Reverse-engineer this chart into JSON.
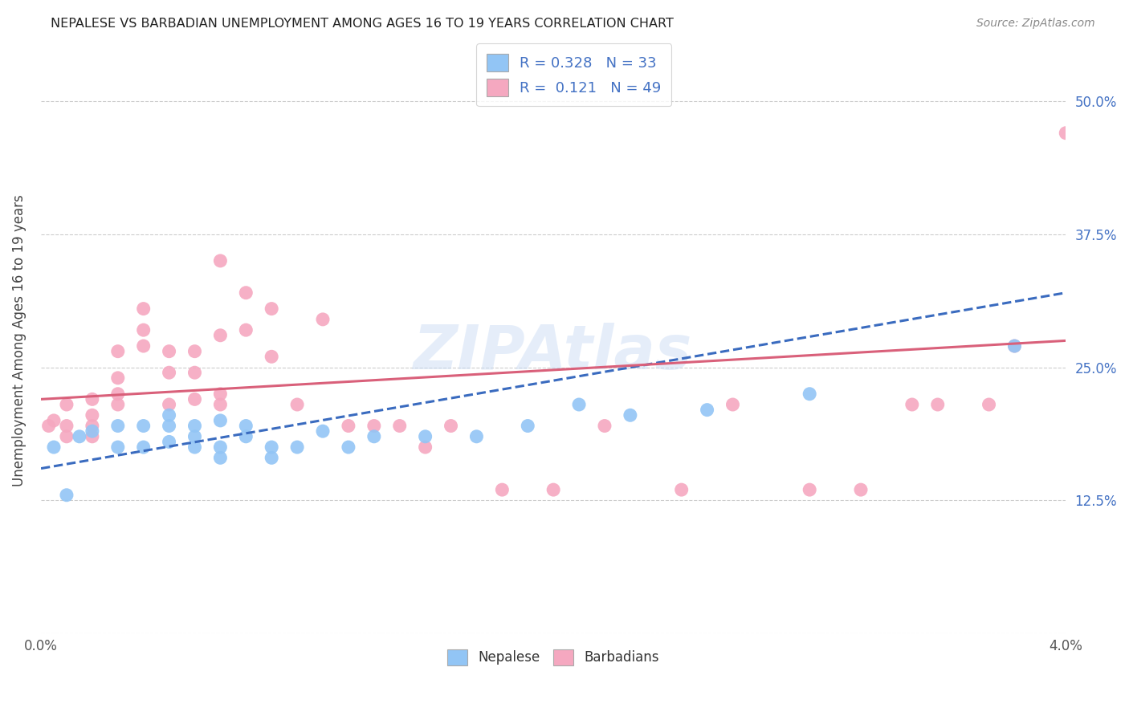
{
  "title": "NEPALESE VS BARBADIAN UNEMPLOYMENT AMONG AGES 16 TO 19 YEARS CORRELATION CHART",
  "source": "Source: ZipAtlas.com",
  "ylabel": "Unemployment Among Ages 16 to 19 years",
  "nepalese_R": 0.328,
  "nepalese_N": 33,
  "barbadian_R": 0.121,
  "barbadian_N": 49,
  "nepalese_color": "#92c5f5",
  "barbadian_color": "#f5a8c0",
  "nepalese_line_color": "#3a6bbf",
  "barbadian_line_color": "#d9607a",
  "legend_label_nepalese": "Nepalese",
  "legend_label_barbadian": "Barbadians",
  "watermark": "ZIPAtlas",
  "background_color": "#ffffff",
  "grid_color": "#cccccc",
  "nepalese_x": [
    0.0005,
    0.001,
    0.0015,
    0.002,
    0.003,
    0.003,
    0.004,
    0.004,
    0.005,
    0.005,
    0.005,
    0.006,
    0.006,
    0.006,
    0.007,
    0.007,
    0.007,
    0.008,
    0.008,
    0.009,
    0.009,
    0.01,
    0.011,
    0.012,
    0.013,
    0.015,
    0.017,
    0.019,
    0.021,
    0.023,
    0.026,
    0.03,
    0.038
  ],
  "nepalese_y": [
    0.175,
    0.13,
    0.185,
    0.19,
    0.175,
    0.195,
    0.175,
    0.195,
    0.18,
    0.195,
    0.205,
    0.175,
    0.185,
    0.195,
    0.165,
    0.175,
    0.2,
    0.185,
    0.195,
    0.165,
    0.175,
    0.175,
    0.19,
    0.175,
    0.185,
    0.185,
    0.185,
    0.195,
    0.215,
    0.205,
    0.21,
    0.225,
    0.27
  ],
  "barbadian_x": [
    0.0003,
    0.0005,
    0.001,
    0.001,
    0.001,
    0.002,
    0.002,
    0.002,
    0.002,
    0.003,
    0.003,
    0.003,
    0.003,
    0.004,
    0.004,
    0.004,
    0.005,
    0.005,
    0.005,
    0.006,
    0.006,
    0.006,
    0.007,
    0.007,
    0.007,
    0.007,
    0.008,
    0.008,
    0.009,
    0.009,
    0.01,
    0.011,
    0.012,
    0.013,
    0.014,
    0.015,
    0.016,
    0.018,
    0.02,
    0.022,
    0.025,
    0.027,
    0.03,
    0.032,
    0.034,
    0.035,
    0.037,
    0.038,
    0.04
  ],
  "barbadian_y": [
    0.195,
    0.2,
    0.185,
    0.195,
    0.215,
    0.185,
    0.195,
    0.205,
    0.22,
    0.215,
    0.225,
    0.24,
    0.265,
    0.27,
    0.285,
    0.305,
    0.215,
    0.245,
    0.265,
    0.22,
    0.245,
    0.265,
    0.215,
    0.225,
    0.28,
    0.35,
    0.285,
    0.32,
    0.26,
    0.305,
    0.215,
    0.295,
    0.195,
    0.195,
    0.195,
    0.175,
    0.195,
    0.135,
    0.135,
    0.195,
    0.135,
    0.215,
    0.135,
    0.135,
    0.215,
    0.215,
    0.215,
    0.27,
    0.47
  ],
  "nepalese_trendline": [
    0.155,
    0.32
  ],
  "barbadian_trendline": [
    0.22,
    0.275
  ],
  "xlim": [
    0.0,
    0.04
  ],
  "ylim": [
    0.0,
    0.55
  ],
  "yticks": [
    0.0,
    0.125,
    0.25,
    0.375,
    0.5
  ],
  "ytick_labels": [
    "",
    "12.5%",
    "25.0%",
    "37.5%",
    "50.0%"
  ],
  "xtick_labels_left": "0.0%",
  "xtick_labels_right": "4.0%"
}
